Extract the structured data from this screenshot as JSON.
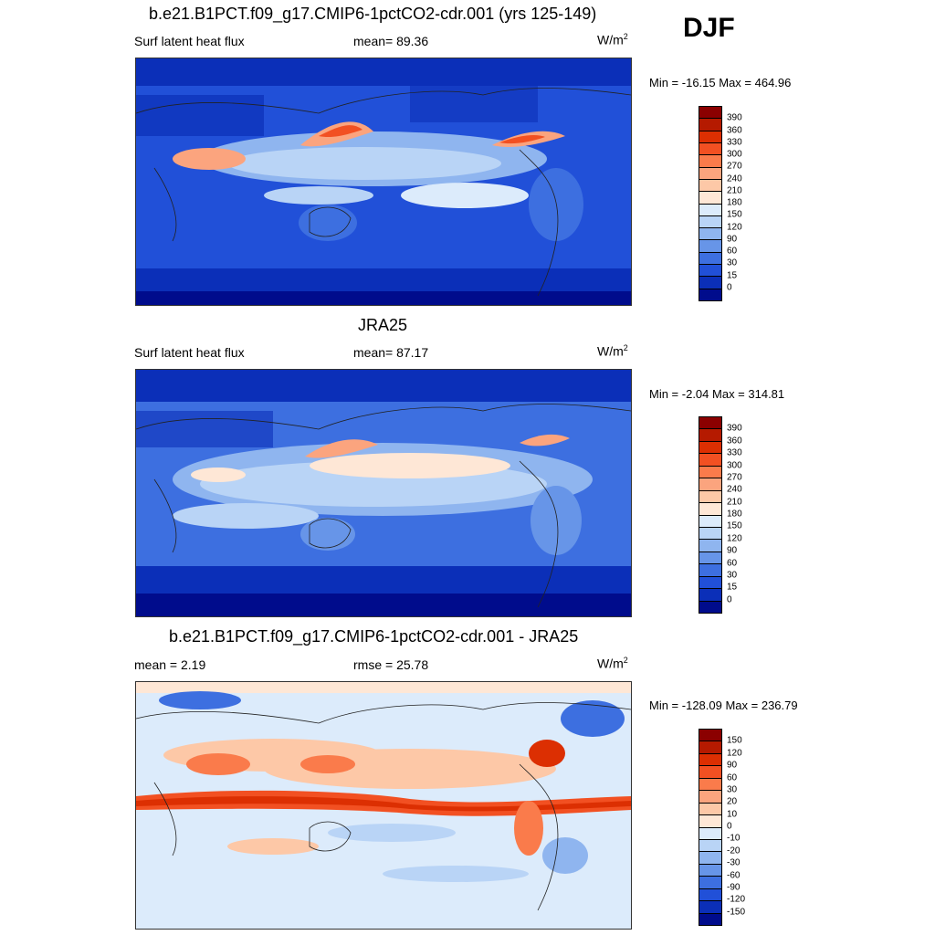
{
  "season": "DJF",
  "panels": [
    {
      "title": "b.e21.B1PCT.f09_g17.CMIP6-1pctCO2-cdr.001 (yrs 125-149)",
      "left_label": "Surf latent heat flux",
      "center_label": "mean=  89.36",
      "unit": "W/m",
      "unit_sup": "2",
      "minmax": "Min = -16.15 Max = 464.96",
      "kind": "abs"
    },
    {
      "title": "JRA25",
      "left_label": "Surf latent heat flux",
      "center_label": "mean=  87.17",
      "unit": "W/m",
      "unit_sup": "2",
      "minmax": "Min =  -2.04 Max = 314.81",
      "kind": "abs"
    },
    {
      "title": "b.e21.B1PCT.f09_g17.CMIP6-1pctCO2-cdr.001 - JRA25",
      "left_label": "mean =   2.19",
      "center_label": "rmse =  25.78",
      "unit": "W/m",
      "unit_sup": "2",
      "minmax": "Min = -128.09 Max = 236.79",
      "kind": "diff"
    }
  ],
  "colorbars": {
    "abs": {
      "labels": [
        "390",
        "360",
        "330",
        "300",
        "270",
        "240",
        "210",
        "180",
        "150",
        "120",
        "90",
        "60",
        "30",
        "15",
        "0"
      ],
      "colors": [
        "#8b0000",
        "#b51a00",
        "#dc2f02",
        "#f25022",
        "#fa7b4b",
        "#fba47e",
        "#fdc8a7",
        "#fee7d6",
        "#dcebfb",
        "#b9d4f6",
        "#8fb5ef",
        "#6795e8",
        "#3d6fe0",
        "#2150d8",
        "#0b2fb8",
        "#000c8c"
      ]
    },
    "diff": {
      "labels": [
        "150",
        "120",
        "90",
        "60",
        "30",
        "20",
        "10",
        "0",
        "-10",
        "-20",
        "-30",
        "-60",
        "-90",
        "-120",
        "-150"
      ],
      "colors": [
        "#8b0000",
        "#b51a00",
        "#dc2f02",
        "#f25022",
        "#fa7b4b",
        "#fba47e",
        "#fdc8a7",
        "#fee7d6",
        "#dcebfb",
        "#b9d4f6",
        "#8fb5ef",
        "#6795e8",
        "#3d6fe0",
        "#2150d8",
        "#0b2fb8",
        "#000c8c"
      ]
    }
  }
}
